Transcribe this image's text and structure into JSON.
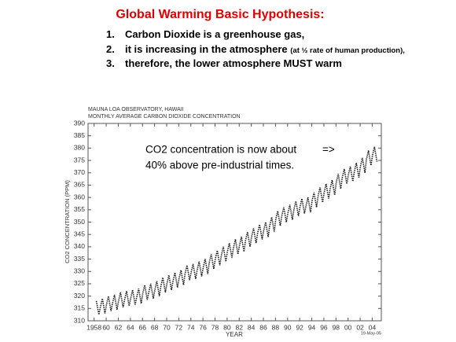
{
  "slide": {
    "title": "Global Warming Basic Hypothesis:",
    "items": [
      {
        "number": "1.",
        "text": "Carbon Dioxide is a greenhouse gas,"
      },
      {
        "number": "2.",
        "text": "it is increasing in the atmosphere",
        "note": "(at ½ rate of human production),"
      },
      {
        "number": "3.",
        "text": "therefore, the lower atmosphere MUST warm"
      }
    ]
  },
  "chart_data": {
    "type": "line",
    "title": "MAUNA LOA OBSERVATORY, HAWAII",
    "subtitle": "MONTHLY AVERAGE CARBON DIOXIDE CONCENTRATION",
    "x_label": "YEAR",
    "y_label": "CO2 CONCENTRATION (PPM)",
    "date": "19-May-05",
    "annotations": [
      "CO2 concentration is now about",
      "=>",
      "40% above pre-industrial times."
    ],
    "xlim": [
      1957,
      2005.5
    ],
    "xticks": [
      1958,
      {
        "value": 1960,
        "label": "60"
      },
      {
        "value": 1962,
        "label": "62"
      },
      {
        "value": 1964,
        "label": "64"
      },
      {
        "value": 1966,
        "label": "66"
      },
      {
        "value": 1968,
        "label": "68"
      },
      {
        "value": 1970,
        "label": "70"
      },
      {
        "value": 1972,
        "label": "72"
      },
      {
        "value": 1974,
        "label": "74"
      },
      {
        "value": 1976,
        "label": "76"
      },
      {
        "value": 1978,
        "label": "78"
      },
      {
        "value": 1980,
        "label": "80"
      },
      {
        "value": 1982,
        "label": "82"
      },
      {
        "value": 1984,
        "label": "84"
      },
      {
        "value": 1986,
        "label": "86"
      },
      {
        "value": 1988,
        "label": "88"
      },
      {
        "value": 1990,
        "label": "90"
      },
      {
        "value": 1992,
        "label": "92"
      },
      {
        "value": 1994,
        "label": "94"
      },
      {
        "value": 1996,
        "label": "96"
      },
      {
        "value": 1998,
        "label": "98"
      },
      {
        "value": 2000,
        "label": "00"
      },
      {
        "value": 2002,
        "label": "02"
      },
      {
        "value": 2004,
        "label": "04"
      }
    ],
    "ylim": [
      310,
      390
    ],
    "yticks": [
      310,
      315,
      320,
      325,
      330,
      335,
      340,
      345,
      350,
      355,
      360,
      365,
      370,
      375,
      380,
      385,
      390
    ],
    "grid": false,
    "series": [
      {
        "color": "#111111",
        "x": [
          1958.37,
          1958.79,
          1959.04,
          1959.37,
          1959.79,
          1960.04,
          1960.37,
          1960.79,
          1961.04,
          1961.37,
          1961.79,
          1962.04,
          1962.37,
          1962.79,
          1963.04,
          1963.37,
          1963.79,
          1964.04,
          1964.37,
          1964.79,
          1965.04,
          1965.37,
          1965.79,
          1966.04,
          1966.37,
          1966.79,
          1967.04,
          1967.37,
          1967.79,
          1968.04,
          1968.37,
          1968.79,
          1969.04,
          1969.37,
          1969.79,
          1970.04,
          1970.37,
          1970.79,
          1971.04,
          1971.37,
          1971.79,
          1972.04,
          1972.37,
          1972.79,
          1973.04,
          1973.37,
          1973.79,
          1974.04,
          1974.37,
          1974.79,
          1975.04,
          1975.37,
          1975.79,
          1976.04,
          1976.37,
          1976.79,
          1977.04,
          1977.37,
          1977.79,
          1978.04,
          1978.37,
          1978.79,
          1979.04,
          1979.37,
          1979.79,
          1980.04,
          1980.37,
          1980.79,
          1981.04,
          1981.37,
          1981.79,
          1982.04,
          1982.37,
          1982.79,
          1983.04,
          1983.37,
          1983.79,
          1984.04,
          1984.37,
          1984.79,
          1985.04,
          1985.37,
          1985.79,
          1986.04,
          1986.37,
          1986.79,
          1987.04,
          1987.37,
          1987.79,
          1988.04,
          1988.37,
          1988.79,
          1989.04,
          1989.37,
          1989.79,
          1990.04,
          1990.37,
          1990.79,
          1991.04,
          1991.37,
          1991.79,
          1992.04,
          1992.37,
          1992.79,
          1993.04,
          1993.37,
          1993.79,
          1994.04,
          1994.37,
          1994.79,
          1995.04,
          1995.37,
          1995.79,
          1996.04,
          1996.37,
          1996.79,
          1997.04,
          1997.37,
          1997.79,
          1998.04,
          1998.37,
          1998.79,
          1999.04,
          1999.37,
          1999.79,
          2000.04,
          2000.37,
          2000.79,
          2001.04,
          2001.37,
          2001.79,
          2002.04,
          2002.37,
          2002.79,
          2003.04,
          2003.37,
          2003.79,
          2004.04,
          2004.37,
          2004.79
        ],
        "values": [
          318,
          312.5,
          315.5,
          319,
          313,
          316.5,
          320,
          314,
          317,
          320.5,
          314.5,
          318,
          321.5,
          315.5,
          318.5,
          322,
          316,
          319,
          322.5,
          316.5,
          319.5,
          323,
          317,
          321,
          324.5,
          318.5,
          321.5,
          325,
          319,
          322.5,
          326,
          320,
          324,
          327.5,
          321.5,
          325,
          328.5,
          322.5,
          326,
          329.5,
          323.5,
          327,
          330.5,
          324.5,
          329,
          332.5,
          326.5,
          329.5,
          333,
          327,
          330.5,
          334,
          328,
          331.5,
          335,
          329,
          333.5,
          337,
          331,
          335,
          338.5,
          332.5,
          336.5,
          340,
          334,
          338,
          341.5,
          335.5,
          339.5,
          343,
          337,
          340.5,
          344,
          338,
          342.5,
          346,
          340,
          344,
          347.5,
          341.5,
          345.5,
          349,
          343,
          346.5,
          350,
          344,
          348.5,
          352,
          346,
          351,
          354.5,
          348.5,
          352.5,
          356,
          350,
          353.5,
          357,
          351,
          355,
          358.5,
          352.5,
          356,
          359.5,
          353.5,
          356.5,
          360,
          354,
          358.5,
          362,
          356,
          360.5,
          364,
          358,
          362,
          365.5,
          359.5,
          363.5,
          367,
          361,
          366,
          369.5,
          363.5,
          368,
          371.5,
          365.5,
          369,
          372.5,
          366.5,
          370.5,
          374,
          368,
          372.5,
          376,
          370,
          375.5,
          379,
          373,
          377,
          380.5,
          374.5
        ]
      }
    ]
  }
}
